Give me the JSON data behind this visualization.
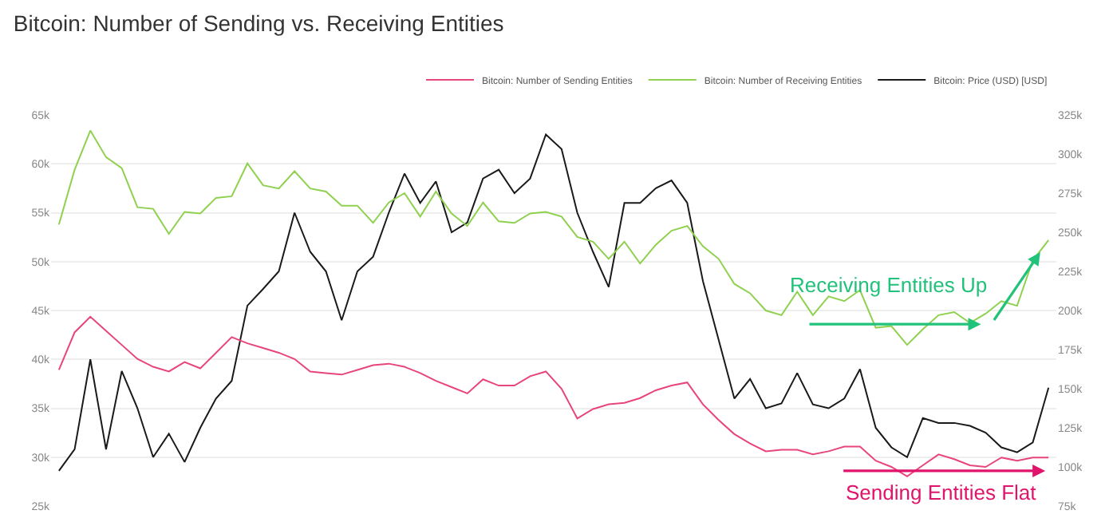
{
  "chart_data": {
    "type": "line",
    "title": "Bitcoin: Number of Sending vs. Receiving Entities",
    "categories": [
      null,
      null,
      null,
      null,
      null,
      null,
      null,
      null,
      null,
      null,
      null,
      null,
      null,
      null,
      null,
      null,
      null,
      null,
      null,
      null,
      null,
      null,
      null,
      null,
      null,
      null,
      null,
      null,
      null,
      null,
      null,
      null,
      null,
      null,
      null,
      null,
      null,
      null,
      null,
      null,
      null,
      null,
      null,
      null,
      null,
      null,
      null,
      null,
      null,
      null,
      null,
      null,
      null,
      null,
      null,
      null,
      null,
      null,
      null,
      null,
      null,
      null,
      null,
      null
    ],
    "series": [
      {
        "name": "Bitcoin: Number of Sending Entities",
        "color": "#e8457e",
        "axis": "y2",
        "values": [
          162000,
          186000,
          196000,
          187000,
          178000,
          169000,
          164000,
          161000,
          167000,
          163000,
          173000,
          183000,
          179000,
          176000,
          173000,
          169000,
          161000,
          160000,
          159000,
          162000,
          165000,
          166000,
          164000,
          160000,
          155000,
          151000,
          147000,
          156000,
          152000,
          152000,
          158000,
          161000,
          150000,
          131000,
          137000,
          140000,
          141000,
          144000,
          149000,
          152000,
          154000,
          140000,
          130000,
          121000,
          115000,
          110000,
          111000,
          111000,
          108000,
          110000,
          113000,
          113000,
          104000,
          100000,
          94000,
          101000,
          108000,
          105000,
          101000,
          100000,
          106000,
          104000,
          106000,
          106000
        ]
      },
      {
        "name": "Bitcoin: Number of Receiving Entities",
        "color": "#8fd14f",
        "axis": "y2",
        "values": [
          255000,
          290000,
          315000,
          298000,
          291000,
          266000,
          265000,
          249000,
          263000,
          262000,
          272000,
          273000,
          294000,
          280000,
          278000,
          289000,
          278000,
          276000,
          267000,
          267000,
          256000,
          269000,
          275000,
          260000,
          276000,
          262000,
          254000,
          269000,
          257000,
          256000,
          262000,
          263000,
          260000,
          247000,
          244000,
          233000,
          244000,
          230000,
          242000,
          251000,
          254000,
          241000,
          233000,
          217000,
          211000,
          200000,
          197000,
          212000,
          197000,
          209000,
          206000,
          213000,
          189000,
          190000,
          178000,
          188000,
          197000,
          199000,
          192000,
          198000,
          206000,
          203000,
          232000,
          245000
        ]
      },
      {
        "name": "Bitcoin: Price (USD) [USD]",
        "color": "#1a1a1a",
        "axis": "y",
        "values": [
          28600,
          30800,
          40000,
          30800,
          38800,
          35000,
          30000,
          32400,
          29500,
          33000,
          36000,
          37800,
          45500,
          47200,
          49000,
          55000,
          51000,
          49000,
          44000,
          49000,
          50500,
          55000,
          59000,
          56000,
          58200,
          53000,
          54000,
          58500,
          59400,
          57000,
          58500,
          63000,
          61500,
          55000,
          51000,
          47400,
          56000,
          56000,
          57500,
          58300,
          56000,
          48000,
          42000,
          36000,
          38000,
          35000,
          35500,
          38600,
          35400,
          35000,
          36000,
          39000,
          33000,
          31000,
          30000,
          34000,
          33500,
          33500,
          33200,
          32500,
          31000,
          30500,
          31500,
          37100
        ]
      }
    ],
    "ylim": [
      25000,
      65000
    ],
    "yticks": [
      {
        "value": 25000,
        "label": "25k"
      },
      {
        "value": 30000,
        "label": "30k"
      },
      {
        "value": 35000,
        "label": "35k"
      },
      {
        "value": 40000,
        "label": "40k"
      },
      {
        "value": 45000,
        "label": "45k"
      },
      {
        "value": 50000,
        "label": "50k"
      },
      {
        "value": 55000,
        "label": "55k"
      },
      {
        "value": 60000,
        "label": "60k"
      },
      {
        "value": 65000,
        "label": "65k"
      }
    ],
    "y2lim": [
      75000,
      325000
    ],
    "y2ticks": [
      {
        "value": 75000,
        "label": "75k"
      },
      {
        "value": 100000,
        "label": "100k"
      },
      {
        "value": 125000,
        "label": "125k"
      },
      {
        "value": 150000,
        "label": "150k"
      },
      {
        "value": 175000,
        "label": "175k"
      },
      {
        "value": 200000,
        "label": "200k"
      },
      {
        "value": 225000,
        "label": "225k"
      },
      {
        "value": 250000,
        "label": "250k"
      },
      {
        "value": 275000,
        "label": "275k"
      },
      {
        "value": 300000,
        "label": "300k"
      },
      {
        "value": 325000,
        "label": "325k"
      }
    ],
    "annotations": [
      "Receiving Entities Up",
      "Sending Entities Flat"
    ],
    "grid": "y",
    "legend": "top right",
    "tick_labels": "y",
    "marker": "none",
    "line_style": "solid"
  }
}
